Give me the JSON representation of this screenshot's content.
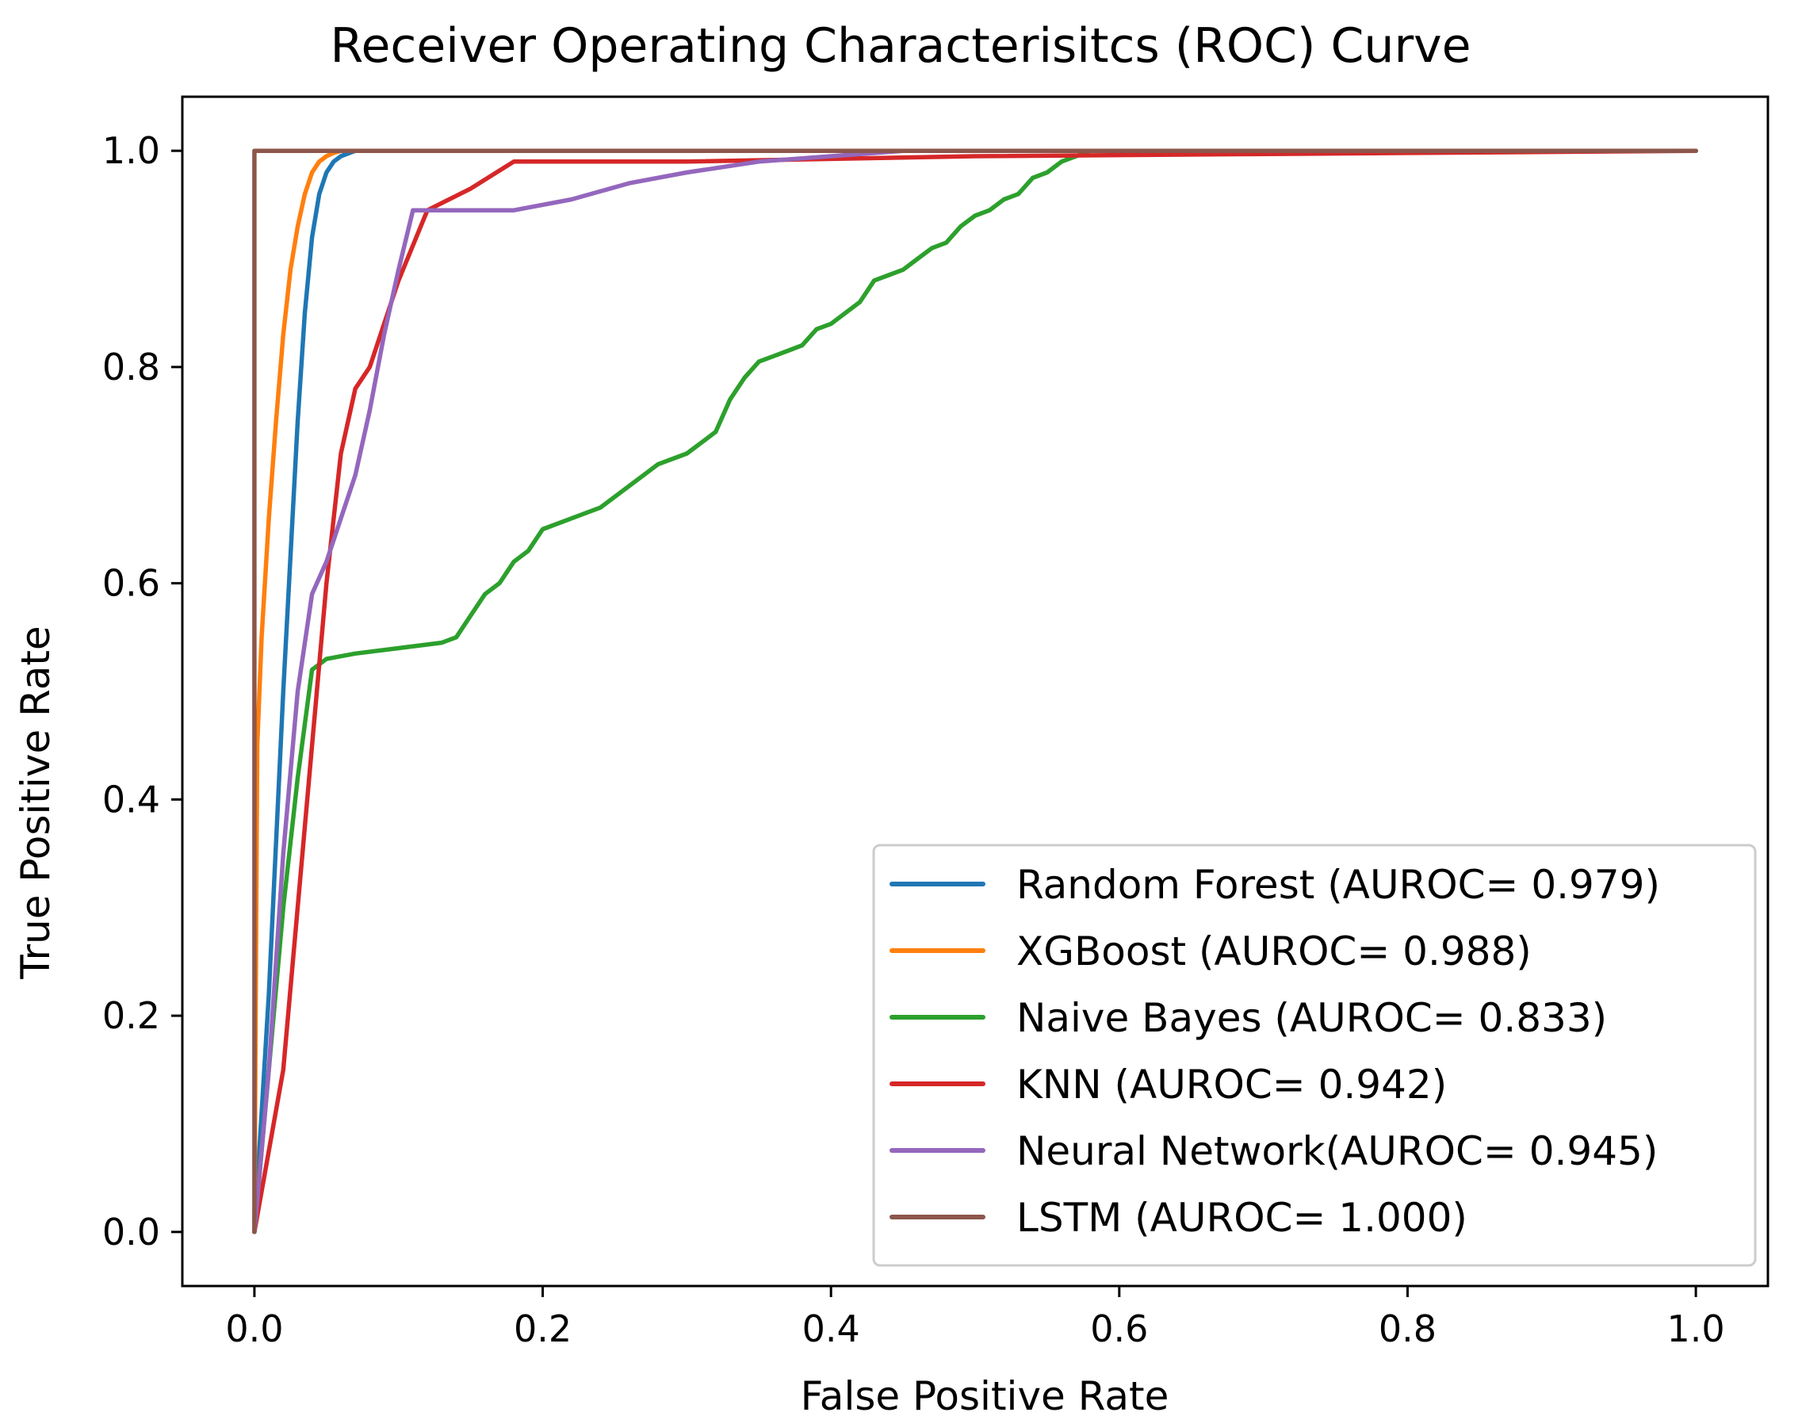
{
  "chart_data": {
    "type": "line",
    "title": "Receiver Operating Characterisitcs (ROC) Curve",
    "xlabel": "False Positive Rate",
    "ylabel": "True Positive Rate",
    "xlim": [
      -0.05,
      1.05
    ],
    "ylim": [
      -0.05,
      1.05
    ],
    "xticks": [
      0.0,
      0.2,
      0.4,
      0.6,
      0.8,
      1.0
    ],
    "yticks": [
      0.0,
      0.2,
      0.4,
      0.6,
      0.8,
      1.0
    ],
    "xtick_labels": [
      "0.0",
      "0.2",
      "0.4",
      "0.6",
      "0.8",
      "1.0"
    ],
    "ytick_labels": [
      "0.0",
      "0.2",
      "0.4",
      "0.6",
      "0.8",
      "1.0"
    ],
    "grid": false,
    "legend_position": "lower-right",
    "series": [
      {
        "name": "Random Forest (AUROC= 0.979)",
        "color": "#1f77b4",
        "x": [
          0,
          0.01,
          0.02,
          0.03,
          0.035,
          0.04,
          0.045,
          0.05,
          0.055,
          0.06,
          0.07,
          0.1,
          0.3,
          0.5,
          1.0
        ],
        "y": [
          0,
          0.22,
          0.5,
          0.75,
          0.85,
          0.92,
          0.96,
          0.98,
          0.99,
          0.995,
          1.0,
          1.0,
          1.0,
          1.0,
          1.0
        ]
      },
      {
        "name": "XGBoost (AUROC= 0.988)",
        "color": "#ff7f0e",
        "x": [
          0,
          0.002,
          0.005,
          0.01,
          0.015,
          0.02,
          0.025,
          0.03,
          0.035,
          0.04,
          0.045,
          0.05,
          0.055,
          0.06,
          0.1,
          0.5,
          1.0
        ],
        "y": [
          0,
          0.45,
          0.55,
          0.66,
          0.75,
          0.83,
          0.89,
          0.93,
          0.96,
          0.98,
          0.99,
          0.995,
          0.998,
          1.0,
          1.0,
          1.0,
          1.0
        ]
      },
      {
        "name": "Naive Bayes (AUROC= 0.833)",
        "color": "#2ca02c",
        "x": [
          0,
          0.02,
          0.03,
          0.04,
          0.05,
          0.07,
          0.1,
          0.13,
          0.14,
          0.15,
          0.16,
          0.17,
          0.18,
          0.19,
          0.2,
          0.22,
          0.24,
          0.26,
          0.27,
          0.28,
          0.3,
          0.31,
          0.32,
          0.33,
          0.34,
          0.35,
          0.36,
          0.37,
          0.38,
          0.39,
          0.4,
          0.41,
          0.42,
          0.43,
          0.44,
          0.45,
          0.46,
          0.47,
          0.48,
          0.49,
          0.5,
          0.51,
          0.52,
          0.53,
          0.54,
          0.55,
          0.56,
          0.57,
          0.58,
          0.6,
          0.8,
          1.0
        ],
        "y": [
          0,
          0.3,
          0.42,
          0.52,
          0.53,
          0.535,
          0.54,
          0.545,
          0.55,
          0.57,
          0.59,
          0.6,
          0.62,
          0.63,
          0.65,
          0.66,
          0.67,
          0.69,
          0.7,
          0.71,
          0.72,
          0.73,
          0.74,
          0.77,
          0.79,
          0.805,
          0.81,
          0.815,
          0.82,
          0.835,
          0.84,
          0.85,
          0.86,
          0.88,
          0.885,
          0.89,
          0.9,
          0.91,
          0.915,
          0.93,
          0.94,
          0.945,
          0.955,
          0.96,
          0.975,
          0.98,
          0.99,
          0.995,
          1.0,
          1.0,
          1.0,
          1.0
        ]
      },
      {
        "name": "KNN (AUROC= 0.942)",
        "color": "#d62728",
        "x": [
          0,
          0.02,
          0.04,
          0.05,
          0.06,
          0.07,
          0.08,
          0.1,
          0.12,
          0.15,
          0.18,
          0.19,
          0.3,
          0.5,
          1.0
        ],
        "y": [
          0,
          0.15,
          0.45,
          0.6,
          0.72,
          0.78,
          0.8,
          0.88,
          0.945,
          0.965,
          0.99,
          0.99,
          0.99,
          0.995,
          1.0
        ]
      },
      {
        "name": "Neural Network(AUROC= 0.945)",
        "color": "#9467bd",
        "x": [
          0,
          0.01,
          0.02,
          0.03,
          0.04,
          0.05,
          0.06,
          0.07,
          0.08,
          0.09,
          0.1,
          0.11,
          0.13,
          0.15,
          0.18,
          0.22,
          0.26,
          0.3,
          0.35,
          0.4,
          0.45,
          0.5,
          1.0
        ],
        "y": [
          0,
          0.15,
          0.35,
          0.5,
          0.59,
          0.62,
          0.66,
          0.7,
          0.76,
          0.83,
          0.89,
          0.945,
          0.945,
          0.945,
          0.945,
          0.955,
          0.97,
          0.98,
          0.99,
          0.995,
          1.0,
          1.0,
          1.0
        ]
      },
      {
        "name": "LSTM (AUROC= 1.000)",
        "color": "#8c564b",
        "x": [
          0,
          0,
          1.0
        ],
        "y": [
          0,
          1.0,
          1.0
        ]
      }
    ]
  }
}
